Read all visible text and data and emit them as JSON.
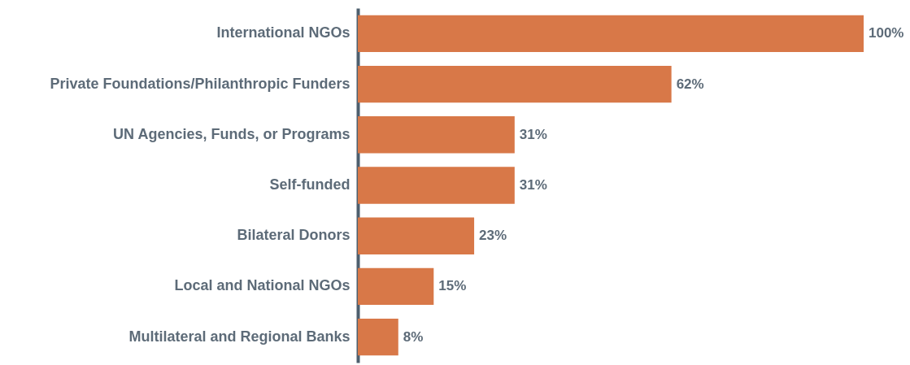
{
  "chart_data": {
    "type": "bar",
    "orientation": "horizontal",
    "categories": [
      "International NGOs",
      "Private Foundations/Philanthropic Funders",
      "UN Agencies, Funds, or Programs",
      "Self-funded",
      "Bilateral Donors",
      "Local and National NGOs",
      "Multilateral and Regional Banks"
    ],
    "values": [
      100,
      62,
      31,
      31,
      23,
      15,
      8
    ],
    "value_labels": [
      "100%",
      "62%",
      "31%",
      "31%",
      "23%",
      "15%",
      "8%"
    ],
    "color": "#d87848"
  }
}
